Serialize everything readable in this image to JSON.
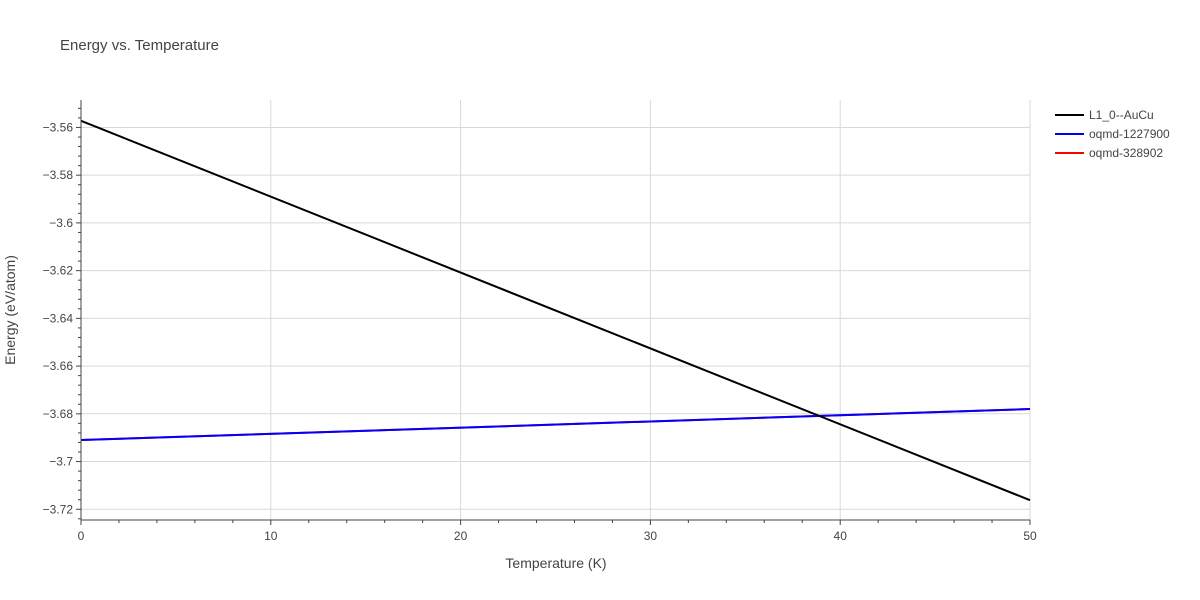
{
  "chart_data": {
    "type": "line",
    "title": "Energy vs. Temperature",
    "xlabel": "Temperature (K)",
    "ylabel": "Energy (eV/atom)",
    "xlim": [
      0,
      50
    ],
    "ylim": [
      -3.7245,
      -3.5485
    ],
    "x_ticks": [
      0,
      10,
      20,
      30,
      40,
      50
    ],
    "x_tick_labels": [
      "0",
      "10",
      "20",
      "30",
      "40",
      "50"
    ],
    "y_ticks": [
      -3.72,
      -3.7,
      -3.68,
      -3.66,
      -3.64,
      -3.62,
      -3.6,
      -3.58,
      -3.56
    ],
    "y_tick_labels": [
      "−3.72",
      "−3.7",
      "−3.68",
      "−3.66",
      "−3.64",
      "−3.62",
      "−3.6",
      "−3.58",
      "−3.56"
    ],
    "grid": true,
    "legend_position": "top-right",
    "series": [
      {
        "name": "L1_0--AuCu",
        "color": "#000000",
        "x": [
          0,
          50
        ],
        "y": [
          -3.5572,
          -3.7162
        ]
      },
      {
        "name": "oqmd-1227900",
        "color": "#0000ff",
        "x": [
          0,
          50
        ],
        "y": [
          -3.691,
          -3.678
        ]
      },
      {
        "name": "oqmd-328902",
        "color": "#ff0000",
        "x": [
          0,
          50
        ],
        "y": [
          -3.691,
          -3.678
        ]
      }
    ]
  }
}
